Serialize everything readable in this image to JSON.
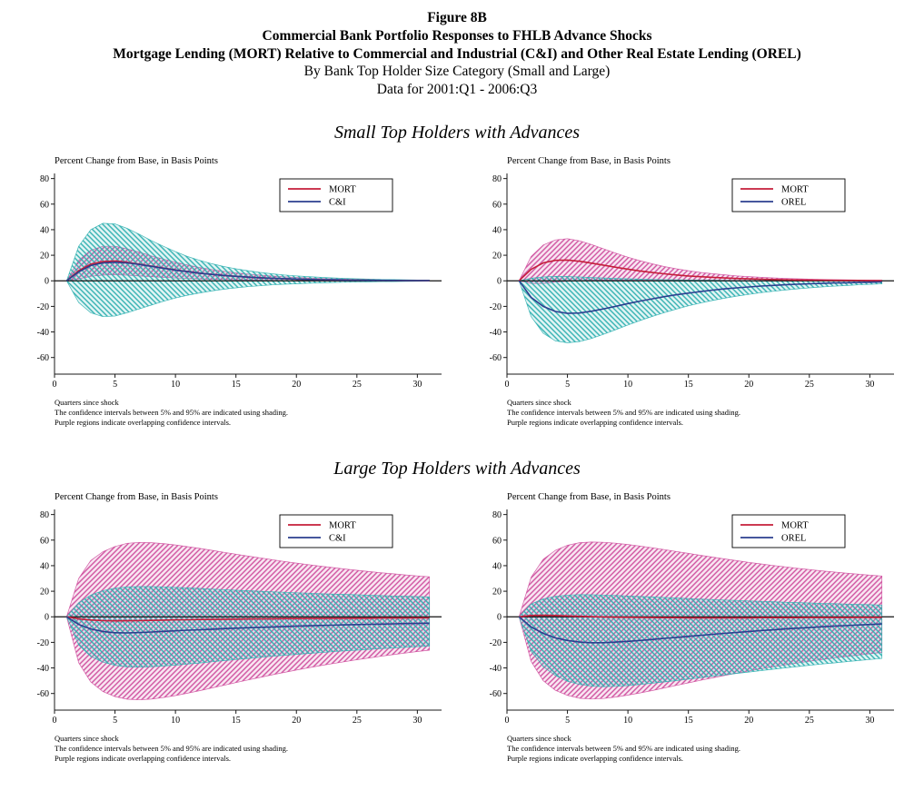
{
  "title": {
    "figure_number": "Figure 8B",
    "main": "Commercial Bank Portfolio Responses to FHLB Advance Shocks",
    "subtitle": "Mortgage Lending (MORT) Relative to Commercial and Industrial (C&I) and Other Real Estate Lending (OREL)",
    "category": "By Bank Top Holder Size Category (Small and Large)",
    "data_range": "Data for 2001:Q1 - 2006:Q3"
  },
  "sections": [
    {
      "heading": "Small Top Holders with Advances"
    },
    {
      "heading": "Large Top Holders with Advances"
    }
  ],
  "footnotes": {
    "xlabel_note": "Quarters since shock",
    "shading": "The confidence intervals between 5% and 95% are indicated using shading.",
    "purple": "Purple regions indicate overlapping confidence intervals."
  },
  "colors": {
    "mort_line": "#c41e3a",
    "second_line": "#2b3f8f",
    "mort_band": "#cf4f9e",
    "second_band": "#2fb0b0",
    "axis": "#1a1a1a",
    "zero_line": "#111111",
    "legend_border": "#000000"
  },
  "chart_data": [
    {
      "type": "line",
      "title": "Small Top Holders with Advances: MORT vs C&I",
      "ylabel": "Percent Change from Base, in Basis Points",
      "xlabel": "Quarters since shock",
      "xlim": [
        0,
        32
      ],
      "ylim": [
        -73,
        84
      ],
      "xticks": [
        0,
        5,
        10,
        15,
        20,
        25,
        30
      ],
      "yticks": [
        -60,
        -40,
        -20,
        0,
        20,
        40,
        60,
        80
      ],
      "grid": false,
      "legend_position": "top-right",
      "x": [
        1,
        2,
        3,
        4,
        5,
        6,
        7,
        8,
        9,
        10,
        11,
        12,
        13,
        14,
        15,
        16,
        17,
        18,
        19,
        20,
        21,
        22,
        23,
        24,
        25,
        26,
        27,
        28,
        29,
        30,
        31
      ],
      "series": [
        {
          "name": "MORT",
          "color": "#c41e3a",
          "band_color": "#cf4f9e",
          "values": [
            0,
            8,
            13,
            15,
            15.5,
            14.5,
            13,
            11.5,
            10,
            8.5,
            7.2,
            6,
            5,
            4.2,
            3.5,
            2.9,
            2.4,
            2,
            1.6,
            1.3,
            1.1,
            0.9,
            0.7,
            0.6,
            0.5,
            0.4,
            0.3,
            0.3,
            0.2,
            0.2,
            0.1
          ],
          "band_upper": [
            0,
            16,
            24,
            27,
            27,
            25,
            22.5,
            19.5,
            17,
            14.5,
            12.3,
            10.4,
            8.8,
            7.4,
            6.2,
            5.2,
            4.4,
            3.7,
            3.1,
            2.6,
            2.2,
            1.8,
            1.5,
            1.3,
            1.1,
            0.9,
            0.7,
            0.6,
            0.5,
            0.4,
            0.4
          ],
          "band_lower": [
            0,
            1.5,
            3.5,
            4.5,
            4.8,
            4.4,
            3.8,
            3.2,
            2.7,
            2.2,
            1.8,
            1.5,
            1.2,
            1,
            0.8,
            0.6,
            0.5,
            0.4,
            0.3,
            0.3,
            0.2,
            0.2,
            0.1,
            0.1,
            0.1,
            0.1,
            0,
            0,
            0,
            0,
            0
          ]
        },
        {
          "name": "C&I",
          "color": "#2b3f8f",
          "band_color": "#2fb0b0",
          "values": [
            0,
            7,
            12,
            14,
            14.5,
            14,
            12.8,
            11.3,
            9.8,
            8.4,
            7.1,
            6,
            5,
            4.2,
            3.5,
            2.9,
            2.4,
            2,
            1.7,
            1.4,
            1.1,
            0.9,
            0.8,
            0.6,
            0.5,
            0.4,
            0.4,
            0.3,
            0.2,
            0.2,
            0.2
          ],
          "band_upper": [
            0,
            27,
            40,
            45,
            44.5,
            41,
            36.5,
            31.5,
            27,
            22.8,
            19,
            16,
            13.4,
            11.2,
            9.4,
            7.9,
            6.6,
            5.5,
            4.6,
            3.9,
            3.3,
            2.7,
            2.3,
            1.9,
            1.6,
            1.4,
            1.1,
            1,
            0.8,
            0.7,
            0.6
          ],
          "band_lower": [
            0,
            -17,
            -25,
            -28,
            -27.5,
            -25,
            -22,
            -19,
            -16,
            -13.5,
            -11.3,
            -9.5,
            -7.9,
            -6.6,
            -5.5,
            -4.6,
            -3.9,
            -3.2,
            -2.7,
            -2.3,
            -1.9,
            -1.6,
            -1.3,
            -1.1,
            -0.9,
            -0.8,
            -0.7,
            -0.6,
            -0.5,
            -0.4,
            -0.3
          ]
        }
      ]
    },
    {
      "type": "line",
      "title": "Small Top Holders with Advances: MORT vs OREL",
      "ylabel": "Percent Change from Base, in Basis Points",
      "xlabel": "Quarters since shock",
      "xlim": [
        0,
        32
      ],
      "ylim": [
        -73,
        84
      ],
      "xticks": [
        0,
        5,
        10,
        15,
        20,
        25,
        30
      ],
      "yticks": [
        -60,
        -40,
        -20,
        0,
        20,
        40,
        60,
        80
      ],
      "grid": false,
      "legend_position": "top-right",
      "x": [
        1,
        2,
        3,
        4,
        5,
        6,
        7,
        8,
        9,
        10,
        11,
        12,
        13,
        14,
        15,
        16,
        17,
        18,
        19,
        20,
        21,
        22,
        23,
        24,
        25,
        26,
        27,
        28,
        29,
        30,
        31
      ],
      "series": [
        {
          "name": "MORT",
          "color": "#c41e3a",
          "band_color": "#cf4f9e",
          "values": [
            0,
            9,
            14,
            16,
            16.2,
            15.3,
            13.8,
            12.2,
            10.6,
            9.1,
            7.7,
            6.5,
            5.5,
            4.6,
            3.8,
            3.2,
            2.7,
            2.2,
            1.8,
            1.5,
            1.3,
            1,
            0.9,
            0.7,
            0.6,
            0.5,
            0.4,
            0.3,
            0.3,
            0.2,
            0.2
          ],
          "band_upper": [
            0,
            19,
            28,
            32,
            33,
            31.3,
            28.4,
            25,
            21.6,
            18.5,
            15.7,
            13.3,
            11.2,
            9.4,
            7.9,
            6.6,
            5.6,
            4.7,
            3.9,
            3.3,
            2.7,
            2.3,
            1.9,
            1.6,
            1.3,
            1.1,
            0.9,
            0.8,
            0.7,
            0.6,
            0.5
          ],
          "band_lower": [
            0,
            -2,
            -2,
            -1,
            -0.3,
            0.2,
            0.5,
            0.6,
            0.6,
            0.6,
            0.5,
            0.5,
            0.4,
            0.4,
            0.3,
            0.3,
            0.2,
            0.2,
            0.2,
            0.1,
            0.1,
            0.1,
            0.1,
            0.1,
            0,
            0,
            0,
            0,
            0,
            0,
            0
          ]
        },
        {
          "name": "OREL",
          "color": "#2b3f8f",
          "band_color": "#2fb0b0",
          "values": [
            0,
            -13,
            -20,
            -24,
            -25.5,
            -25.2,
            -23.8,
            -21.9,
            -19.9,
            -17.8,
            -15.9,
            -14.1,
            -12.4,
            -10.9,
            -9.6,
            -8.4,
            -7.3,
            -6.3,
            -5.5,
            -4.8,
            -4.1,
            -3.6,
            -3.1,
            -2.7,
            -2.3,
            -2,
            -1.7,
            -1.5,
            -1.3,
            -1.1,
            -0.9
          ],
          "band_upper": [
            0,
            2,
            3,
            3.5,
            3.4,
            3,
            2.6,
            2.2,
            1.9,
            1.6,
            1.3,
            1.1,
            0.9,
            0.8,
            0.7,
            0.5,
            0.5,
            0.4,
            0.3,
            0.3,
            0.2,
            0.2,
            0.1,
            0.1,
            0.1,
            0.1,
            0.1,
            0,
            0,
            0,
            0
          ],
          "band_lower": [
            0,
            -28,
            -41,
            -47,
            -48.5,
            -47.6,
            -45.1,
            -41.8,
            -38.2,
            -34.6,
            -31.1,
            -27.9,
            -24.9,
            -22.1,
            -19.6,
            -17.4,
            -15.4,
            -13.6,
            -12,
            -10.6,
            -9.3,
            -8.2,
            -7.2,
            -6.3,
            -5.5,
            -4.8,
            -4.2,
            -3.7,
            -3.2,
            -2.8,
            -2.4
          ]
        }
      ]
    },
    {
      "type": "line",
      "title": "Large Top Holders with Advances: MORT vs C&I",
      "ylabel": "Percent Change from Base, in Basis Points",
      "xlabel": "Quarters since shock",
      "xlim": [
        0,
        32
      ],
      "ylim": [
        -73,
        84
      ],
      "xticks": [
        0,
        5,
        10,
        15,
        20,
        25,
        30
      ],
      "yticks": [
        -60,
        -40,
        -20,
        0,
        20,
        40,
        60,
        80
      ],
      "grid": false,
      "legend_position": "top-right",
      "x": [
        1,
        2,
        3,
        4,
        5,
        6,
        7,
        8,
        9,
        10,
        11,
        12,
        13,
        14,
        15,
        16,
        17,
        18,
        19,
        20,
        21,
        22,
        23,
        24,
        25,
        26,
        27,
        28,
        29,
        30,
        31
      ],
      "series": [
        {
          "name": "MORT",
          "color": "#c41e3a",
          "band_color": "#cf4f9e",
          "values": [
            0,
            -1.5,
            -2.5,
            -3,
            -3.2,
            -3.1,
            -3,
            -2.8,
            -2.6,
            -2.4,
            -2.3,
            -2.1,
            -2,
            -1.9,
            -1.8,
            -1.7,
            -1.6,
            -1.5,
            -1.4,
            -1.4,
            -1.3,
            -1.3,
            -1.2,
            -1.2,
            -1.1,
            -1.1,
            -1,
            -1,
            -1,
            -0.9,
            -0.9
          ],
          "band_upper": [
            0,
            30,
            44,
            51,
            55,
            57.5,
            58.2,
            58,
            57.3,
            56.2,
            54.9,
            53.5,
            52,
            50.5,
            49,
            47.5,
            46.1,
            44.7,
            43.3,
            42,
            40.8,
            39.6,
            38.5,
            37.4,
            36.4,
            35.4,
            34.5,
            33.6,
            32.8,
            32,
            31.3
          ],
          "band_lower": [
            0,
            -36,
            -51,
            -58.5,
            -62.5,
            -64.5,
            -65,
            -64.4,
            -63.2,
            -61.6,
            -59.8,
            -57.8,
            -55.7,
            -53.6,
            -51.5,
            -49.4,
            -47.4,
            -45.4,
            -43.5,
            -41.7,
            -39.9,
            -38.2,
            -36.6,
            -35.1,
            -33.6,
            -32.2,
            -30.9,
            -29.6,
            -28.4,
            -27.2,
            -26.1
          ]
        },
        {
          "name": "C&I",
          "color": "#2b3f8f",
          "band_color": "#2fb0b0",
          "values": [
            0,
            -6,
            -9.5,
            -11.5,
            -12.5,
            -12.6,
            -12.3,
            -11.9,
            -11.4,
            -11,
            -10.5,
            -10.1,
            -9.7,
            -9.3,
            -8.9,
            -8.6,
            -8.2,
            -7.9,
            -7.6,
            -7.3,
            -7.1,
            -6.8,
            -6.6,
            -6.3,
            -6.1,
            -5.9,
            -5.7,
            -5.5,
            -5.3,
            -5.2,
            -5
          ],
          "band_upper": [
            0,
            11,
            17,
            20.5,
            22.5,
            23.3,
            23.6,
            23.6,
            23.4,
            23,
            22.6,
            22.2,
            21.7,
            21.3,
            20.8,
            20.4,
            20,
            19.6,
            19.2,
            18.8,
            18.5,
            18.1,
            17.8,
            17.5,
            17.2,
            16.9,
            16.6,
            16.3,
            16.1,
            15.8,
            15.6
          ],
          "band_lower": [
            0,
            -22,
            -31,
            -35.5,
            -38,
            -39.2,
            -39.4,
            -39.1,
            -38.5,
            -37.8,
            -37,
            -36.1,
            -35.2,
            -34.3,
            -33.4,
            -32.6,
            -31.7,
            -30.9,
            -30.1,
            -29.4,
            -28.7,
            -28,
            -27.3,
            -26.7,
            -26.1,
            -25.5,
            -24.9,
            -24.4,
            -23.9,
            -23.4,
            -22.9
          ]
        }
      ]
    },
    {
      "type": "line",
      "title": "Large Top Holders with Advances: MORT vs OREL",
      "ylabel": "Percent Change from Base, in Basis Points",
      "xlabel": "Quarters since shock",
      "xlim": [
        0,
        32
      ],
      "ylim": [
        -73,
        84
      ],
      "xticks": [
        0,
        5,
        10,
        15,
        20,
        25,
        30
      ],
      "yticks": [
        -60,
        -40,
        -20,
        0,
        20,
        40,
        60,
        80
      ],
      "grid": false,
      "legend_position": "top-right",
      "x": [
        1,
        2,
        3,
        4,
        5,
        6,
        7,
        8,
        9,
        10,
        11,
        12,
        13,
        14,
        15,
        16,
        17,
        18,
        19,
        20,
        21,
        22,
        23,
        24,
        25,
        26,
        27,
        28,
        29,
        30,
        31
      ],
      "series": [
        {
          "name": "MORT",
          "color": "#c41e3a",
          "band_color": "#cf4f9e",
          "values": [
            0,
            1,
            1.2,
            1,
            0.7,
            0.4,
            0.1,
            -0.1,
            -0.3,
            -0.4,
            -0.5,
            -0.6,
            -0.7,
            -0.7,
            -0.8,
            -0.8,
            -0.8,
            -0.8,
            -0.8,
            -0.8,
            -0.7,
            -0.7,
            -0.7,
            -0.7,
            -0.6,
            -0.6,
            -0.6,
            -0.6,
            -0.5,
            -0.5,
            -0.5
          ],
          "band_upper": [
            0,
            31,
            45,
            52,
            56,
            58,
            58.5,
            58.3,
            57.6,
            56.6,
            55.4,
            54,
            52.6,
            51.1,
            49.6,
            48.1,
            46.7,
            45.3,
            43.9,
            42.6,
            41.4,
            40.2,
            39.1,
            38,
            37,
            36,
            35.1,
            34.2,
            33.4,
            32.6,
            31.9
          ],
          "band_lower": [
            0,
            -35,
            -50,
            -57.5,
            -61.5,
            -63.8,
            -64.3,
            -63.9,
            -62.8,
            -61.3,
            -59.6,
            -57.7,
            -55.7,
            -53.7,
            -51.7,
            -49.7,
            -47.8,
            -45.9,
            -44.1,
            -42.4,
            -40.7,
            -39.1,
            -37.6,
            -36.2,
            -34.8,
            -33.5,
            -32.3,
            -31.1,
            -30,
            -28.9,
            -27.9
          ]
        },
        {
          "name": "OREL",
          "color": "#2b3f8f",
          "band_color": "#2fb0b0",
          "values": [
            0,
            -8,
            -13,
            -16.5,
            -18.5,
            -19.8,
            -20.3,
            -20.2,
            -19.8,
            -19.2,
            -18.5,
            -17.7,
            -16.9,
            -16.1,
            -15.3,
            -14.5,
            -13.7,
            -13,
            -12.2,
            -11.5,
            -10.8,
            -10.2,
            -9.5,
            -8.9,
            -8.4,
            -7.8,
            -7.3,
            -6.9,
            -6.4,
            -6,
            -5.6
          ],
          "band_upper": [
            0,
            10,
            14,
            16,
            17,
            17.3,
            17.2,
            17,
            16.7,
            16.3,
            15.9,
            15.5,
            15.1,
            14.7,
            14.3,
            13.9,
            13.5,
            13.1,
            12.8,
            12.4,
            12.1,
            11.8,
            11.4,
            11.1,
            10.8,
            10.5,
            10.3,
            10,
            9.7,
            9.5,
            9.2
          ],
          "band_lower": [
            0,
            -27,
            -39,
            -46,
            -50.5,
            -53,
            -54.3,
            -54.7,
            -54.4,
            -53.8,
            -53,
            -52,
            -51,
            -49.9,
            -48.8,
            -47.7,
            -46.5,
            -45.4,
            -44.3,
            -43.2,
            -42.1,
            -41,
            -40,
            -39,
            -38,
            -37,
            -36.1,
            -35.2,
            -34.3,
            -33.4,
            -32.6
          ]
        }
      ]
    }
  ]
}
